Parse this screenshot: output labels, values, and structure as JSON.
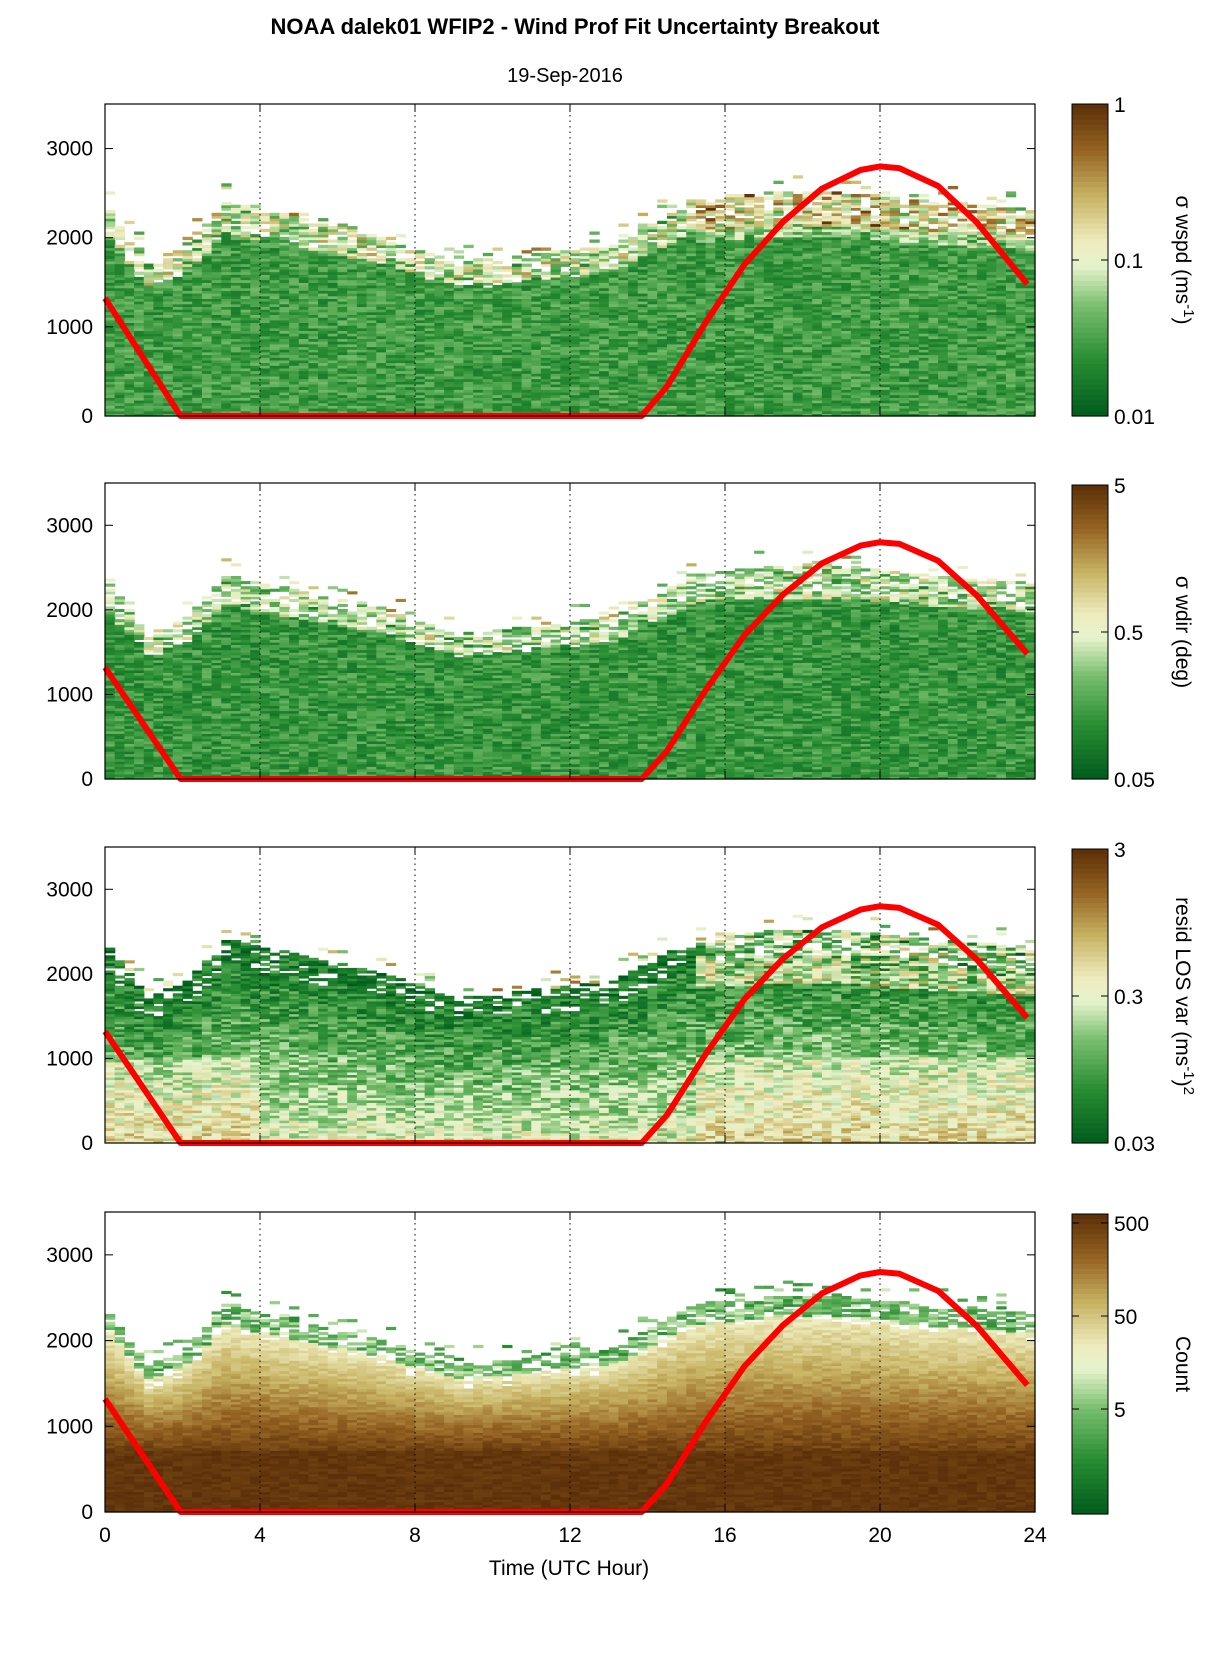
{
  "title": "NOAA dalek01 WFIP2 - Wind Prof Fit Uncertainty Breakout",
  "subtitle": "19-Sep-2016",
  "colors": {
    "sun_curve": "#ff0000",
    "low": "#005c1c",
    "mid": "#f3f7d8",
    "high": "#5a2e08"
  },
  "chart_data": [
    {
      "type": "heatmap",
      "xlabel": "",
      "ylabel": "",
      "xlim": [
        0,
        24
      ],
      "ylim": [
        0,
        3500
      ],
      "x_ticks": [
        0,
        4,
        8,
        12,
        16,
        20,
        24
      ],
      "y_ticks": [
        0,
        1000,
        2000,
        3000
      ],
      "y_tick_labels": [
        "0",
        "1000",
        "2000",
        "3000"
      ],
      "grid": "vertical dotted at 4,8,12,16,20",
      "colorbar": {
        "label": "σ wspd (ms-1)",
        "label_parts": [
          "σ wspd (ms",
          "-1",
          ")"
        ],
        "scale": "log",
        "ticks": [
          1,
          0.1,
          0.01
        ],
        "tick_labels": [
          "1",
          "0.1",
          "0.01"
        ]
      }
    },
    {
      "type": "heatmap",
      "xlabel": "",
      "ylabel": "",
      "xlim": [
        0,
        24
      ],
      "ylim": [
        0,
        3500
      ],
      "x_ticks": [
        0,
        4,
        8,
        12,
        16,
        20,
        24
      ],
      "y_ticks": [
        0,
        1000,
        2000,
        3000
      ],
      "y_tick_labels": [
        "0",
        "1000",
        "2000",
        "3000"
      ],
      "grid": "vertical dotted at 4,8,12,16,20",
      "colorbar": {
        "label": "σ wdir (deg)",
        "label_parts": [
          "σ wdir (deg)"
        ],
        "scale": "log",
        "ticks": [
          5,
          0.5,
          0.05
        ],
        "tick_labels": [
          "5",
          "0.5",
          "0.05"
        ]
      }
    },
    {
      "type": "heatmap",
      "xlabel": "",
      "ylabel": "",
      "xlim": [
        0,
        24
      ],
      "ylim": [
        0,
        3500
      ],
      "x_ticks": [
        0,
        4,
        8,
        12,
        16,
        20,
        24
      ],
      "y_ticks": [
        0,
        1000,
        2000,
        3000
      ],
      "y_tick_labels": [
        "0",
        "1000",
        "2000",
        "3000"
      ],
      "grid": "vertical dotted at 4,8,12,16,20",
      "colorbar": {
        "label": "resid LOS var (ms-1)2",
        "label_parts": [
          "resid LOS var (ms",
          "-1",
          ")",
          "2"
        ],
        "scale": "log",
        "ticks": [
          3,
          0.3,
          0.03
        ],
        "tick_labels": [
          "3",
          "0.3",
          "0.03"
        ]
      }
    },
    {
      "type": "heatmap",
      "xlabel": "Time (UTC Hour)",
      "ylabel": "",
      "xlim": [
        0,
        24
      ],
      "ylim": [
        0,
        3500
      ],
      "x_ticks": [
        0,
        4,
        8,
        12,
        16,
        20,
        24
      ],
      "x_tick_labels": [
        "0",
        "4",
        "8",
        "12",
        "16",
        "20",
        "24"
      ],
      "y_ticks": [
        0,
        1000,
        2000,
        3000
      ],
      "y_tick_labels": [
        "0",
        "1000",
        "2000",
        "3000"
      ],
      "grid": "vertical dotted at 4,8,12,16,20",
      "colorbar": {
        "label": "Count",
        "label_parts": [
          "Count"
        ],
        "scale": "log",
        "ticks": [
          500,
          50,
          5
        ],
        "tick_labels": [
          "500",
          "50",
          "5"
        ]
      }
    }
  ],
  "sun_curve": {
    "description_points_x": [
      0,
      1.95,
      13.85,
      14.5,
      15.5,
      16.5,
      17.5,
      18.5,
      19.5,
      20,
      20.5,
      21.5,
      22.5,
      23.8
    ],
    "description_points_y": [
      1320,
      0,
      0,
      330,
      1050,
      1700,
      2180,
      2550,
      2760,
      2800,
      2780,
      2580,
      2170,
      1480
    ]
  }
}
